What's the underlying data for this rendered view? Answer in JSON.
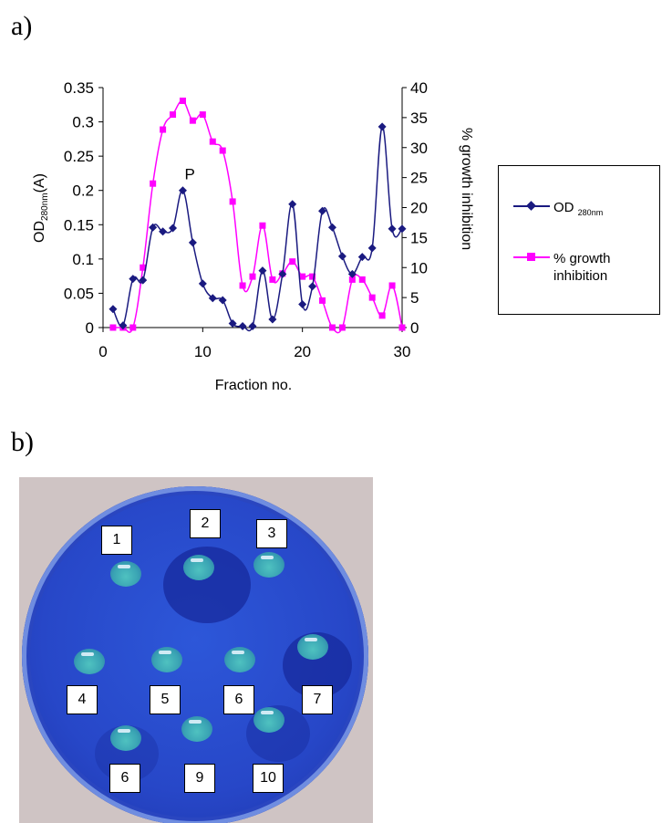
{
  "panels": {
    "a_label": "a)",
    "b_label": "b)"
  },
  "chart_data": {
    "type": "line",
    "title": "",
    "xlabel": "Fraction no.",
    "ylabel_left": {
      "main": "OD",
      "sub": "280nm",
      "suffix": "(A)"
    },
    "ylabel_right": "% growth inhibition",
    "xlim": [
      0,
      30
    ],
    "ylim_left": [
      0,
      0.35
    ],
    "ylim_right": [
      0,
      40
    ],
    "xticks": [
      "0",
      "10",
      "20",
      "30"
    ],
    "yticks_left": [
      "0",
      "0.05",
      "0.1",
      "0.15",
      "0.2",
      "0.25",
      "0.3",
      "0.35"
    ],
    "yticks_right": [
      "0",
      "5",
      "10",
      "15",
      "20",
      "25",
      "30",
      "35",
      "40"
    ],
    "grid": false,
    "legend_position": "right",
    "annotation": {
      "text": "P",
      "x": 8,
      "y": 0.2
    },
    "series": [
      {
        "name": "OD 280nm",
        "legend_main": "OD",
        "legend_sub": "280nm",
        "axis": "left",
        "color": "#1a1a80",
        "marker": "diamond",
        "x": [
          1,
          2,
          3,
          4,
          5,
          6,
          7,
          8,
          9,
          10,
          11,
          12,
          13,
          14,
          15,
          16,
          17,
          18,
          19,
          20,
          21,
          22,
          23,
          24,
          25,
          26,
          27,
          28,
          29,
          30
        ],
        "y": [
          0.027,
          0.003,
          0.071,
          0.069,
          0.146,
          0.14,
          0.145,
          0.2,
          0.124,
          0.064,
          0.043,
          0.04,
          0.006,
          0.002,
          0.002,
          0.083,
          0.012,
          0.078,
          0.18,
          0.034,
          0.06,
          0.17,
          0.146,
          0.104,
          0.078,
          0.103,
          0.116,
          0.293,
          0.144,
          0.144
        ]
      },
      {
        "name": "% growth inhibition",
        "legend_label": "% growth inhibition",
        "axis": "right",
        "color": "#ff00ff",
        "marker": "square",
        "x": [
          1,
          2,
          3,
          4,
          5,
          6,
          7,
          8,
          9,
          10,
          11,
          12,
          13,
          14,
          15,
          16,
          17,
          18,
          19,
          20,
          21,
          22,
          23,
          24,
          25,
          26,
          27,
          28,
          29,
          30
        ],
        "y": [
          0,
          0,
          0,
          10,
          24,
          33,
          35.5,
          37.8,
          34.5,
          35.5,
          31,
          29.5,
          21,
          7,
          8.5,
          17,
          8,
          9,
          11,
          8.5,
          8.5,
          4.5,
          0,
          0,
          8,
          8,
          5,
          2,
          7,
          0
        ]
      }
    ]
  },
  "figure_b": {
    "well_labels": [
      "1",
      "2",
      "3",
      "4",
      "5",
      "6",
      "7",
      "6",
      "9",
      "10"
    ]
  }
}
